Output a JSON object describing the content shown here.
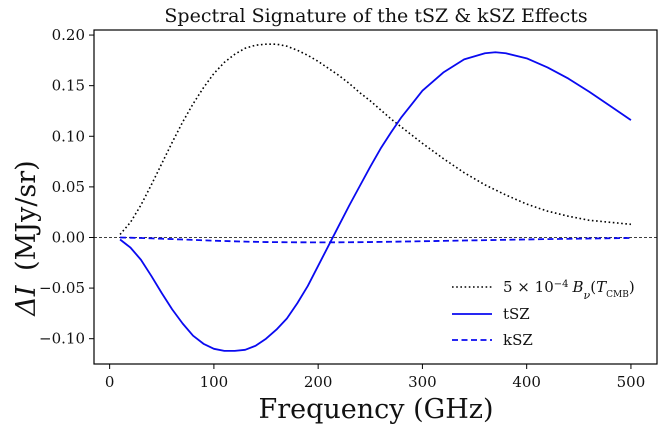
{
  "chart_data": {
    "type": "line",
    "title": "Spectral Signature of the tSZ & kSZ Effects",
    "xlabel": "Frequency (GHz)",
    "ylabel_symbol": "ΔI",
    "ylabel_unit": "(MJy/sr)",
    "xlim": [
      -15,
      525
    ],
    "ylim": [
      -0.125,
      0.205
    ],
    "xticks": [
      0,
      100,
      200,
      300,
      400,
      500
    ],
    "xtick_labels": [
      "0",
      "100",
      "200",
      "300",
      "400",
      "500"
    ],
    "yticks": [
      -0.1,
      -0.05,
      0.0,
      0.05,
      0.1,
      0.15,
      0.2
    ],
    "ytick_labels": [
      "−0.10",
      "−0.05",
      "0.00",
      "0.05",
      "0.10",
      "0.15",
      "0.20"
    ],
    "zero_line": true,
    "legend_position": "lower-right",
    "series": [
      {
        "name": "5 × 10^-4 B_ν(T_CMB)",
        "legend_parts": {
          "coef": "5 × 10",
          "exp": "−4",
          "b": "B",
          "nu": "ν",
          "open": "(",
          "t": "T",
          "cmb": "CMB",
          "close": ")"
        },
        "style": "dotted",
        "color": "#000000",
        "x": [
          10,
          20,
          30,
          40,
          50,
          60,
          70,
          80,
          90,
          100,
          110,
          120,
          130,
          140,
          150,
          160,
          170,
          180,
          190,
          200,
          210,
          220,
          230,
          240,
          250,
          260,
          270,
          280,
          290,
          300,
          320,
          340,
          360,
          380,
          400,
          420,
          440,
          460,
          480,
          500
        ],
        "y": [
          0.003,
          0.015,
          0.032,
          0.052,
          0.073,
          0.094,
          0.114,
          0.132,
          0.148,
          0.162,
          0.173,
          0.181,
          0.187,
          0.19,
          0.191,
          0.191,
          0.189,
          0.185,
          0.18,
          0.174,
          0.167,
          0.16,
          0.152,
          0.143,
          0.135,
          0.126,
          0.117,
          0.109,
          0.101,
          0.093,
          0.078,
          0.064,
          0.052,
          0.042,
          0.033,
          0.026,
          0.021,
          0.017,
          0.015,
          0.013
        ]
      },
      {
        "name": "tSZ",
        "style": "solid",
        "color": "#0a0af0",
        "x": [
          10,
          20,
          30,
          40,
          50,
          60,
          70,
          80,
          90,
          100,
          110,
          120,
          130,
          140,
          150,
          160,
          170,
          180,
          190,
          200,
          210,
          220,
          230,
          240,
          250,
          260,
          270,
          280,
          290,
          300,
          320,
          340,
          360,
          370,
          380,
          400,
          420,
          440,
          460,
          480,
          500
        ],
        "y": [
          -0.002,
          -0.01,
          -0.022,
          -0.038,
          -0.055,
          -0.071,
          -0.085,
          -0.097,
          -0.105,
          -0.11,
          -0.112,
          -0.112,
          -0.111,
          -0.107,
          -0.1,
          -0.091,
          -0.08,
          -0.065,
          -0.048,
          -0.028,
          -0.008,
          0.012,
          0.032,
          0.051,
          0.07,
          0.088,
          0.104,
          0.119,
          0.132,
          0.145,
          0.163,
          0.176,
          0.182,
          0.183,
          0.182,
          0.177,
          0.168,
          0.157,
          0.144,
          0.13,
          0.116
        ]
      },
      {
        "name": "kSZ",
        "style": "dashed",
        "color": "#0a0af0",
        "x": [
          10,
          30,
          50,
          70,
          90,
          110,
          130,
          150,
          170,
          190,
          210,
          230,
          250,
          270,
          300,
          340,
          380,
          420,
          460,
          500
        ],
        "y": [
          0.0,
          -0.0005,
          -0.0012,
          -0.002,
          -0.0028,
          -0.0035,
          -0.0041,
          -0.0045,
          -0.0047,
          -0.0048,
          -0.0048,
          -0.0047,
          -0.0045,
          -0.0042,
          -0.0037,
          -0.003,
          -0.0023,
          -0.0016,
          -0.001,
          -0.0005
        ]
      }
    ]
  }
}
